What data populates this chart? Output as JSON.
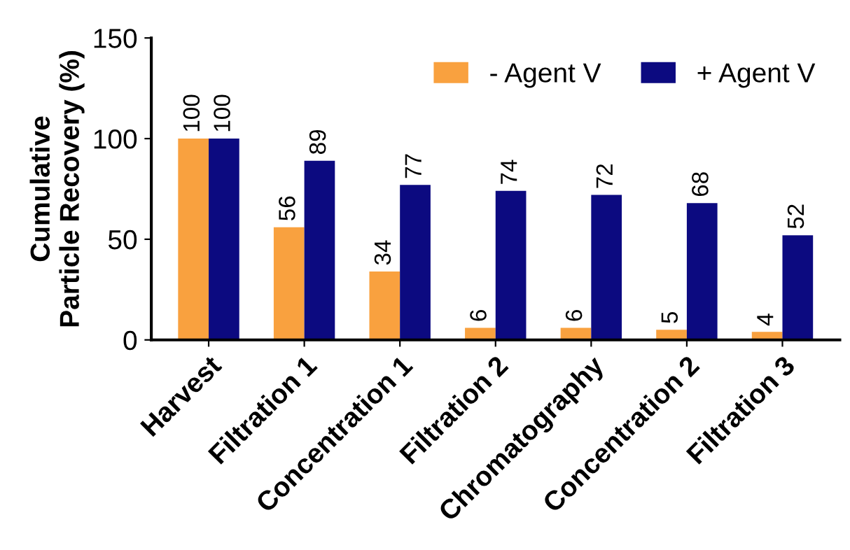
{
  "chart_data": {
    "type": "bar",
    "ylabel": "Cumulative\nParticle Recovery (%)",
    "categories": [
      "Harvest",
      "Filtration 1",
      "Concentration 1",
      "Filtration 2",
      "Chromatography",
      "Concentration 2",
      "Filtration 3"
    ],
    "series": [
      {
        "name": "- Agent V",
        "color": "#f9a13f",
        "values": [
          100,
          56,
          34,
          6,
          6,
          5,
          4
        ]
      },
      {
        "name": "+ Agent V",
        "color": "#0c0a80",
        "values": [
          100,
          89,
          77,
          74,
          72,
          68,
          52
        ]
      }
    ],
    "ylim": [
      0,
      150
    ],
    "yticks": [
      0,
      50,
      100,
      150
    ],
    "grid": false,
    "legend": "top right",
    "data_labels": true
  }
}
